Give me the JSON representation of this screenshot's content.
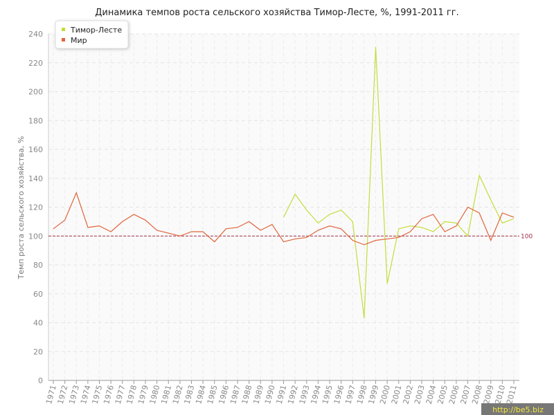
{
  "chart_data": {
    "type": "line",
    "title": "Динамика темпов роста сельского хозяйства Тимор-Лесте, %, 1991-2011 гг.",
    "y_label": "Темп роста сельского хозяйства, %",
    "categories": [
      "1971",
      "1972",
      "1973",
      "1974",
      "1975",
      "1976",
      "1977",
      "1978",
      "1979",
      "1980",
      "1981",
      "1982",
      "1983",
      "1984",
      "1985",
      "1986",
      "1987",
      "1988",
      "1989",
      "1990",
      "1991",
      "1992",
      "1993",
      "1994",
      "1995",
      "1996",
      "1997",
      "1998",
      "1999",
      "2000",
      "2001",
      "2002",
      "2003",
      "2004",
      "2005",
      "2006",
      "2007",
      "2008",
      "2009",
      "2010",
      "2011"
    ],
    "series": [
      {
        "name": "Тимор-Лесте",
        "color": "#c5dc3a",
        "values": [
          null,
          null,
          null,
          null,
          null,
          null,
          null,
          null,
          null,
          null,
          null,
          null,
          null,
          null,
          null,
          null,
          null,
          null,
          null,
          null,
          113,
          129,
          118,
          109,
          115,
          118,
          110,
          43,
          231,
          67,
          105,
          107,
          106,
          103,
          110,
          109,
          100,
          142,
          125,
          109,
          112
        ]
      },
      {
        "name": "Мир",
        "color": "#e0643c",
        "values": [
          105,
          111,
          130,
          106,
          107,
          103,
          110,
          115,
          111,
          104,
          102,
          100,
          103,
          103,
          96,
          105,
          106,
          110,
          104,
          108,
          96,
          98,
          99,
          104,
          107,
          105,
          97,
          94,
          97,
          98,
          99,
          103,
          112,
          115,
          103,
          107,
          120,
          116,
          97,
          116,
          113
        ]
      }
    ],
    "ylim": [
      0,
      240
    ],
    "yticks": [
      0,
      20,
      40,
      60,
      80,
      100,
      120,
      140,
      160,
      180,
      200,
      220,
      240
    ],
    "grid": true,
    "legend": "top-left",
    "reference_line": {
      "value": 100,
      "color": "#a0304a"
    },
    "watermark": "http://be5.biz"
  }
}
